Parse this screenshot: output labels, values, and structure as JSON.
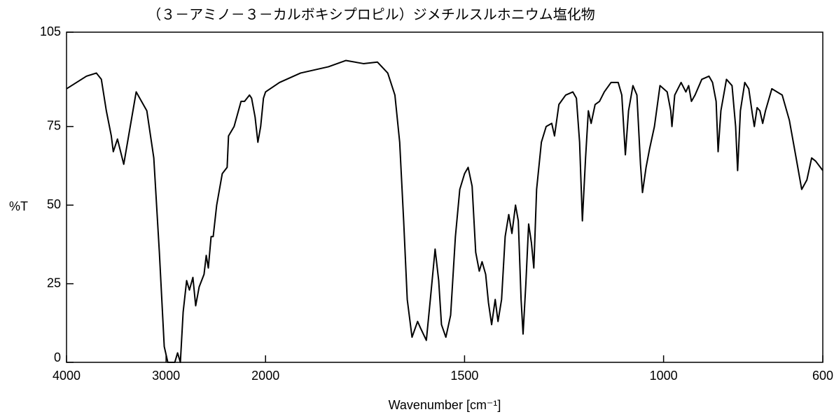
{
  "chart_data": {
    "type": "line",
    "title": "（３－アミノ－３－カルボキシプロピル）ジメチルスルホニウム塩化物",
    "x_label": "Wavenumber [cm⁻¹]",
    "y_label": "%T",
    "xlim": [
      4000,
      600
    ],
    "ylim": [
      0,
      105
    ],
    "xticks": [
      4000,
      3000,
      2000,
      1500,
      1000,
      600
    ],
    "yticks": [
      0,
      25,
      50,
      75,
      105
    ],
    "xscale": {
      "split_at": 2000,
      "ratio": 4
    },
    "color": "#000000",
    "x": [
      4000,
      3900,
      3800,
      3700,
      3650,
      3600,
      3550,
      3530,
      3488,
      3425,
      3300,
      3193,
      3123,
      3067,
      3018,
      2982,
      2947,
      2912,
      2884,
      2856,
      2828,
      2793,
      2765,
      2730,
      2702,
      2667,
      2618,
      2596,
      2575,
      2547,
      2526,
      2491,
      2435,
      2386,
      2372,
      2316,
      2246,
      2211,
      2161,
      2140,
      2105,
      2077,
      2049,
      2021,
      2000,
      1965,
      1912,
      1842,
      1798,
      1754,
      1719,
      1693,
      1675,
      1663,
      1653,
      1644,
      1632,
      1618,
      1611,
      1596,
      1586,
      1574,
      1565,
      1558,
      1547,
      1535,
      1523,
      1512,
      1500,
      1491,
      1481,
      1472,
      1463,
      1456,
      1447,
      1440,
      1432,
      1423,
      1416,
      1407,
      1398,
      1389,
      1381,
      1372,
      1365,
      1358,
      1353,
      1346,
      1339,
      1332,
      1326,
      1319,
      1307,
      1295,
      1281,
      1274,
      1263,
      1246,
      1228,
      1219,
      1211,
      1204,
      1196,
      1189,
      1182,
      1172,
      1161,
      1149,
      1132,
      1114,
      1105,
      1096,
      1088,
      1077,
      1067,
      1058,
      1053,
      1044,
      1035,
      1023,
      1009,
      991,
      982,
      979,
      972,
      956,
      944,
      937,
      930,
      921,
      904,
      886,
      877,
      868,
      863,
      856,
      842,
      828,
      819,
      814,
      807,
      796,
      786,
      777,
      772,
      765,
      758,
      751,
      744,
      728,
      702,
      684,
      667,
      653,
      640,
      628,
      618,
      600
    ],
    "values": [
      87,
      89,
      91,
      92,
      90,
      80,
      72,
      67,
      71,
      63,
      86,
      80,
      65,
      35,
      5,
      0,
      0,
      0,
      3,
      0,
      16,
      26,
      23,
      27,
      18,
      24,
      28,
      34,
      30,
      40,
      40,
      50,
      60,
      62,
      72,
      75,
      83,
      83,
      85,
      84,
      78,
      70,
      75,
      84,
      86,
      89,
      92,
      94,
      96,
      95,
      95.5,
      92,
      85,
      70,
      45,
      20,
      8,
      13,
      11,
      7,
      20,
      36,
      26,
      12,
      8,
      15,
      40,
      55,
      60,
      62,
      56,
      35,
      29,
      32,
      28,
      19,
      12,
      20,
      13,
      20,
      40,
      47,
      41,
      50,
      45,
      20,
      9,
      25,
      44,
      38,
      30,
      55,
      70,
      75,
      76,
      72,
      82,
      85,
      86,
      84,
      70,
      45,
      65,
      80,
      76,
      82,
      83,
      86,
      89,
      89,
      85,
      66,
      80,
      88,
      85,
      63,
      54,
      62,
      68,
      75,
      88,
      86,
      80,
      75,
      85,
      89,
      86,
      88,
      83,
      85,
      90,
      91,
      89,
      83,
      67,
      80,
      90,
      88,
      75,
      61,
      80,
      89,
      87,
      79,
      75,
      81,
      80,
      76,
      80,
      87,
      85,
      77,
      65,
      55,
      58,
      65,
      64,
      61
    ]
  }
}
